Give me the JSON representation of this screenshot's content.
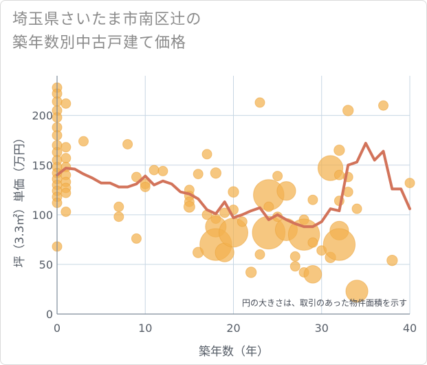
{
  "title_lines": [
    "埼玉県さいたま市南区辻の",
    "築年数別中古戸建て価格"
  ],
  "note": "円の大きさは、取引のあった物件面積を示す",
  "colors": {
    "bubble": "#f2b14f",
    "bubble_stroke": "#e9a33b",
    "line": "#d2735a",
    "grid": "#c7d6e3",
    "axis": "#7d8b99"
  },
  "chart_data": {
    "type": "scatter",
    "xlabel": "築年数（年）",
    "ylabel": "坪（3.3㎡）単価（万円）",
    "xlim": [
      0,
      40
    ],
    "ylim": [
      0,
      240
    ],
    "xticks": [
      0,
      10,
      20,
      30,
      40
    ],
    "yticks": [
      0,
      50,
      100,
      150,
      200
    ],
    "grid": true,
    "bubbles": [
      {
        "x": 0,
        "y": 228,
        "s": 1
      },
      {
        "x": 0,
        "y": 222,
        "s": 1
      },
      {
        "x": 0,
        "y": 214,
        "s": 1
      },
      {
        "x": 0,
        "y": 205,
        "s": 1
      },
      {
        "x": 0,
        "y": 198,
        "s": 1
      },
      {
        "x": 0,
        "y": 188,
        "s": 1
      },
      {
        "x": 0,
        "y": 180,
        "s": 1
      },
      {
        "x": 0,
        "y": 170,
        "s": 1
      },
      {
        "x": 0,
        "y": 163,
        "s": 1
      },
      {
        "x": 0,
        "y": 155,
        "s": 1
      },
      {
        "x": 0,
        "y": 148,
        "s": 1
      },
      {
        "x": 0,
        "y": 142,
        "s": 1
      },
      {
        "x": 0,
        "y": 136,
        "s": 1
      },
      {
        "x": 0,
        "y": 130,
        "s": 1
      },
      {
        "x": 0,
        "y": 124,
        "s": 1
      },
      {
        "x": 0,
        "y": 118,
        "s": 1
      },
      {
        "x": 0,
        "y": 112,
        "s": 1
      },
      {
        "x": 0,
        "y": 68,
        "s": 1
      },
      {
        "x": 1,
        "y": 212,
        "s": 1
      },
      {
        "x": 1,
        "y": 168,
        "s": 1
      },
      {
        "x": 1,
        "y": 157,
        "s": 1
      },
      {
        "x": 1,
        "y": 148,
        "s": 1
      },
      {
        "x": 1,
        "y": 140,
        "s": 1
      },
      {
        "x": 1,
        "y": 133,
        "s": 1
      },
      {
        "x": 1,
        "y": 127,
        "s": 1
      },
      {
        "x": 1,
        "y": 122,
        "s": 1
      },
      {
        "x": 1,
        "y": 103,
        "s": 1
      },
      {
        "x": 3,
        "y": 174,
        "s": 1
      },
      {
        "x": 7,
        "y": 108,
        "s": 1
      },
      {
        "x": 7,
        "y": 98,
        "s": 1
      },
      {
        "x": 8,
        "y": 171,
        "s": 1
      },
      {
        "x": 9,
        "y": 138,
        "s": 1
      },
      {
        "x": 9,
        "y": 76,
        "s": 1
      },
      {
        "x": 10,
        "y": 131,
        "s": 1
      },
      {
        "x": 10,
        "y": 128,
        "s": 1
      },
      {
        "x": 11,
        "y": 145,
        "s": 1
      },
      {
        "x": 12,
        "y": 144,
        "s": 1
      },
      {
        "x": 15,
        "y": 125,
        "s": 1
      },
      {
        "x": 15,
        "y": 119,
        "s": 1
      },
      {
        "x": 15,
        "y": 113,
        "s": 1
      },
      {
        "x": 15,
        "y": 108,
        "s": 1.3
      },
      {
        "x": 16,
        "y": 141,
        "s": 1
      },
      {
        "x": 16,
        "y": 62,
        "s": 1.2
      },
      {
        "x": 17,
        "y": 161,
        "s": 1
      },
      {
        "x": 17,
        "y": 100,
        "s": 1
      },
      {
        "x": 18,
        "y": 142,
        "s": 1.2
      },
      {
        "x": 18,
        "y": 96,
        "s": 1
      },
      {
        "x": 18,
        "y": 88,
        "s": 2.2
      },
      {
        "x": 18,
        "y": 70,
        "s": 5.2
      },
      {
        "x": 19,
        "y": 62,
        "s": 1.8
      },
      {
        "x": 19,
        "y": 102,
        "s": 1
      },
      {
        "x": 20,
        "y": 123,
        "s": 1.2
      },
      {
        "x": 20,
        "y": 105,
        "s": 1
      },
      {
        "x": 20,
        "y": 82,
        "s": 4.3
      },
      {
        "x": 21,
        "y": 93,
        "s": 1
      },
      {
        "x": 22,
        "y": 42,
        "s": 1.2
      },
      {
        "x": 23,
        "y": 213,
        "s": 1
      },
      {
        "x": 23,
        "y": 60,
        "s": 1
      },
      {
        "x": 24,
        "y": 120,
        "s": 4.8
      },
      {
        "x": 24,
        "y": 108,
        "s": 1
      },
      {
        "x": 24,
        "y": 82,
        "s": 5.5
      },
      {
        "x": 25,
        "y": 139,
        "s": 1
      },
      {
        "x": 25,
        "y": 98,
        "s": 1
      },
      {
        "x": 26,
        "y": 124,
        "s": 1.8
      },
      {
        "x": 26,
        "y": 85,
        "s": 2.5
      },
      {
        "x": 27,
        "y": 48,
        "s": 1
      },
      {
        "x": 27,
        "y": 58,
        "s": 1
      },
      {
        "x": 28,
        "y": 95,
        "s": 1
      },
      {
        "x": 28,
        "y": 80,
        "s": 5
      },
      {
        "x": 28,
        "y": 42,
        "s": 1
      },
      {
        "x": 29,
        "y": 40,
        "s": 1.6
      },
      {
        "x": 29,
        "y": 115,
        "s": 1
      },
      {
        "x": 29,
        "y": 72,
        "s": 1
      },
      {
        "x": 30,
        "y": 64,
        "s": 1
      },
      {
        "x": 31,
        "y": 147,
        "s": 3.2
      },
      {
        "x": 31,
        "y": 57,
        "s": 1.2
      },
      {
        "x": 32,
        "y": 165,
        "s": 1.2
      },
      {
        "x": 32,
        "y": 140,
        "s": 1
      },
      {
        "x": 32,
        "y": 114,
        "s": 1
      },
      {
        "x": 32,
        "y": 84,
        "s": 1.8
      },
      {
        "x": 32,
        "y": 70,
        "s": 5.2
      },
      {
        "x": 33,
        "y": 205,
        "s": 1.2
      },
      {
        "x": 33,
        "y": 123,
        "s": 1
      },
      {
        "x": 33,
        "y": 138,
        "s": 1
      },
      {
        "x": 34,
        "y": 106,
        "s": 1
      },
      {
        "x": 34,
        "y": 23,
        "s": 2.5
      },
      {
        "x": 37,
        "y": 210,
        "s": 1
      },
      {
        "x": 38,
        "y": 54,
        "s": 1.2
      },
      {
        "x": 40,
        "y": 132,
        "s": 1
      }
    ],
    "trend": {
      "x": [
        0,
        1,
        2,
        3,
        4,
        5,
        6,
        7,
        8,
        9,
        10,
        11,
        12,
        13,
        14,
        15,
        16,
        17,
        18,
        19,
        20,
        21,
        22,
        23,
        24,
        25,
        26,
        27,
        28,
        29,
        30,
        31,
        32,
        33,
        34,
        35,
        36,
        37,
        38,
        39,
        40
      ],
      "y": [
        140,
        147,
        146,
        141,
        137,
        132,
        132,
        128,
        128,
        131,
        139,
        130,
        134,
        131,
        123,
        121,
        116,
        105,
        101,
        113,
        97,
        100,
        104,
        107,
        95,
        100,
        95,
        91,
        88,
        88,
        93,
        106,
        104,
        150,
        153,
        172,
        155,
        164,
        126,
        126,
        106
      ]
    }
  }
}
